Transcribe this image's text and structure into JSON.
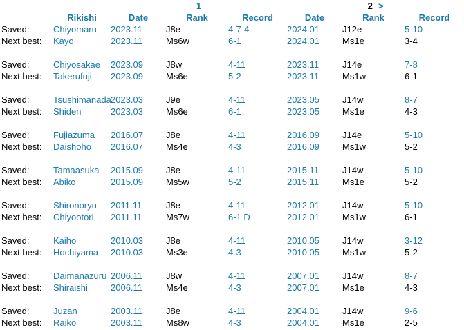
{
  "pagination": {
    "basho1_page": "1",
    "basho2_page": "2",
    "next_symbol": ">"
  },
  "columns": {
    "rikishi": "Rikishi",
    "date": "Date",
    "rank": "Rank",
    "record": "Record"
  },
  "row_labels": {
    "saved": "Saved:",
    "next_best": "Next best:"
  },
  "colors": {
    "link_color": "#1b7aab",
    "text_color": "#000000",
    "background": "#ffffff"
  },
  "groups": [
    {
      "saved": {
        "rikishi": "Chiyomaru",
        "date1": "2023.11",
        "rank1": "J8e",
        "record1": "4-7-4",
        "date2": "2024.01",
        "rank2": "J12e",
        "record2": "5-10"
      },
      "next_best": {
        "rikishi": "Kayo",
        "date1": "2023.11",
        "rank1": "Ms6w",
        "record1": "6-1",
        "date2": "2024.01",
        "rank2": "Ms1e",
        "record2": "3-4"
      }
    },
    {
      "saved": {
        "rikishi": "Chiyosakae",
        "date1": "2023.09",
        "rank1": "J8w",
        "record1": "4-11",
        "date2": "2023.11",
        "rank2": "J14e",
        "record2": "7-8"
      },
      "next_best": {
        "rikishi": "Takerufuji",
        "date1": "2023.09",
        "rank1": "Ms6e",
        "record1": "5-2",
        "date2": "2023.11",
        "rank2": "Ms1w",
        "record2": "6-1"
      }
    },
    {
      "saved": {
        "rikishi": "Tsushimanada",
        "date1": "2023.03",
        "rank1": "J9e",
        "record1": "4-11",
        "date2": "2023.05",
        "rank2": "J14w",
        "record2": "8-7"
      },
      "next_best": {
        "rikishi": "Shiden",
        "date1": "2023.03",
        "rank1": "Ms6e",
        "record1": "6-1",
        "date2": "2023.05",
        "rank2": "Ms1e",
        "record2": "4-3"
      }
    },
    {
      "saved": {
        "rikishi": "Fujiazuma",
        "date1": "2016.07",
        "rank1": "J8e",
        "record1": "4-11",
        "date2": "2016.09",
        "rank2": "J14e",
        "record2": "5-10"
      },
      "next_best": {
        "rikishi": "Daishoho",
        "date1": "2016.07",
        "rank1": "Ms4e",
        "record1": "4-3",
        "date2": "2016.09",
        "rank2": "Ms1w",
        "record2": "5-2"
      }
    },
    {
      "saved": {
        "rikishi": "Tamaasuka",
        "date1": "2015.09",
        "rank1": "J8e",
        "record1": "4-11",
        "date2": "2015.11",
        "rank2": "J14w",
        "record2": "5-10"
      },
      "next_best": {
        "rikishi": "Abiko",
        "date1": "2015.09",
        "rank1": "Ms5w",
        "record1": "5-2",
        "date2": "2015.11",
        "rank2": "Ms1e",
        "record2": "5-2"
      }
    },
    {
      "saved": {
        "rikishi": "Shironoryu",
        "date1": "2011.11",
        "rank1": "J8e",
        "record1": "4-11",
        "date2": "2012.01",
        "rank2": "J14w",
        "record2": "5-10"
      },
      "next_best": {
        "rikishi": "Chiyootori",
        "date1": "2011.11",
        "rank1": "Ms7w",
        "record1": "6-1 D",
        "date2": "2012.01",
        "rank2": "Ms1w",
        "record2": "6-1"
      }
    },
    {
      "saved": {
        "rikishi": "Kaiho",
        "date1": "2010.03",
        "rank1": "J8e",
        "record1": "4-11",
        "date2": "2010.05",
        "rank2": "J14w",
        "record2": "3-12"
      },
      "next_best": {
        "rikishi": "Hochiyama",
        "date1": "2010.03",
        "rank1": "Ms3e",
        "record1": "4-3",
        "date2": "2010.05",
        "rank2": "Ms1w",
        "record2": "5-2"
      }
    },
    {
      "saved": {
        "rikishi": "Daimanazuru",
        "date1": "2006.11",
        "rank1": "J8w",
        "record1": "4-11",
        "date2": "2007.01",
        "rank2": "J14w",
        "record2": "8-7"
      },
      "next_best": {
        "rikishi": "Shiraishi",
        "date1": "2006.11",
        "rank1": "Ms4e",
        "record1": "4-3",
        "date2": "2007.01",
        "rank2": "Ms1e",
        "record2": "4-3"
      }
    },
    {
      "saved": {
        "rikishi": "Juzan",
        "date1": "2003.11",
        "rank1": "J8e",
        "record1": "4-11",
        "date2": "2004.01",
        "rank2": "J14w",
        "record2": "9-6"
      },
      "next_best": {
        "rikishi": "Raiko",
        "date1": "2003.11",
        "rank1": "Ms8w",
        "record1": "4-3",
        "date2": "2004.01",
        "rank2": "Ms1e",
        "record2": "2-5"
      }
    }
  ]
}
